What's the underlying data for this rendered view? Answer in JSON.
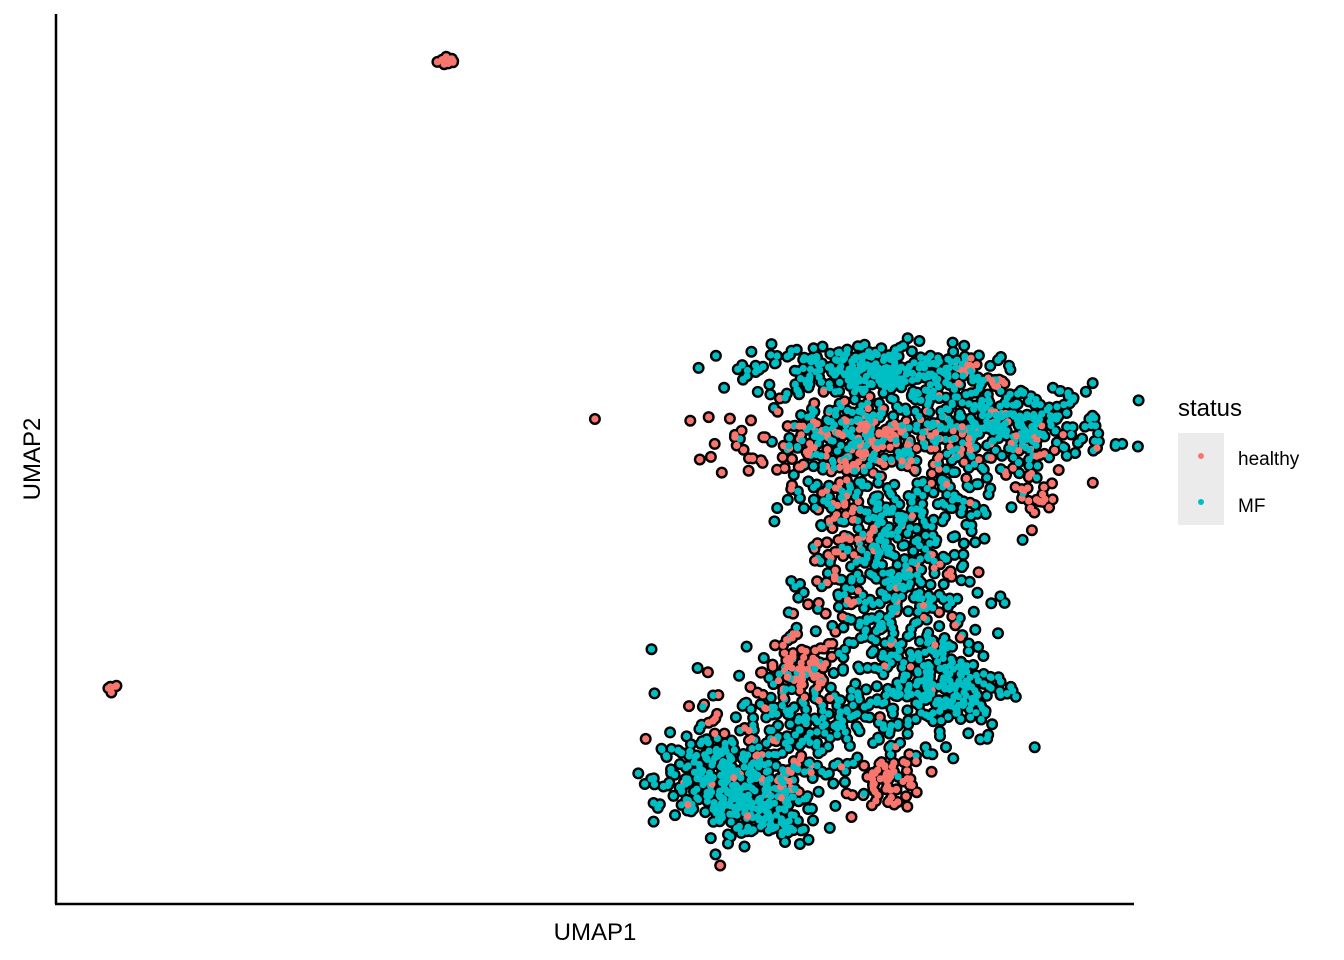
{
  "chart_data": {
    "type": "scatter",
    "title": "",
    "xlabel": "UMAP1",
    "ylabel": "UMAP2",
    "xlim": [
      0,
      100
    ],
    "ylim": [
      0,
      100
    ],
    "grid": false,
    "ticks": false,
    "legend": {
      "title": "status",
      "placement": "right",
      "entries": [
        {
          "label": "healthy",
          "color": "#F8766D"
        },
        {
          "label": "MF",
          "color": "#00BFC4"
        }
      ]
    },
    "series": [
      {
        "name": "healthy",
        "color": "#F8766D",
        "clusters": [
          {
            "cx": 36.3,
            "cy": 95.4,
            "sx": 0.5,
            "sy": 0.3,
            "n": 14
          },
          {
            "cx": 4.9,
            "cy": 24.1,
            "sx": 0.3,
            "sy": 0.2,
            "n": 6
          },
          {
            "cx": 76.1,
            "cy": 52.0,
            "sx": 7.5,
            "sy": 2.3,
            "n": 210
          },
          {
            "cx": 91.5,
            "cy": 48.0,
            "sx": 1.1,
            "sy": 2.8,
            "n": 30
          },
          {
            "cx": 84.6,
            "cy": 60.4,
            "sx": 0.6,
            "sy": 0.5,
            "n": 12
          },
          {
            "cx": 87.6,
            "cy": 58.8,
            "sx": 0.5,
            "sy": 0.4,
            "n": 10
          },
          {
            "cx": 73.1,
            "cy": 41.0,
            "sx": 1.6,
            "sy": 4.0,
            "n": 70
          },
          {
            "cx": 69.3,
            "cy": 26.0,
            "sx": 1.8,
            "sy": 2.0,
            "n": 70
          },
          {
            "cx": 77.6,
            "cy": 13.5,
            "sx": 1.6,
            "sy": 1.6,
            "n": 60
          },
          {
            "cx": 68.5,
            "cy": 14.0,
            "sx": 1.3,
            "sy": 1.0,
            "n": 20
          },
          {
            "cx": 64.0,
            "cy": 18.0,
            "sx": 4.0,
            "sy": 3.5,
            "n": 40
          },
          {
            "cx": 80.0,
            "cy": 35.0,
            "sx": 2.5,
            "sy": 5.0,
            "n": 30
          }
        ]
      },
      {
        "name": "MF",
        "color": "#00BFC4",
        "clusters": [
          {
            "cx": 75.7,
            "cy": 60.1,
            "sx": 5.5,
            "sy": 1.6,
            "n": 300
          },
          {
            "cx": 89.0,
            "cy": 54.0,
            "sx": 4.5,
            "sy": 2.3,
            "n": 240
          },
          {
            "cx": 75.5,
            "cy": 53.0,
            "sx": 5.0,
            "sy": 2.5,
            "n": 160
          },
          {
            "cx": 77.6,
            "cy": 36.0,
            "sx": 3.6,
            "sy": 5.5,
            "n": 300
          },
          {
            "cx": 82.6,
            "cy": 24.5,
            "sx": 3.0,
            "sy": 3.3,
            "n": 220
          },
          {
            "cx": 70.5,
            "cy": 20.5,
            "sx": 4.5,
            "sy": 3.8,
            "n": 200
          },
          {
            "cx": 61.9,
            "cy": 13.5,
            "sx": 3.2,
            "sy": 2.8,
            "n": 260
          },
          {
            "cx": 66.0,
            "cy": 9.5,
            "sx": 2.5,
            "sy": 1.6,
            "n": 90
          },
          {
            "cx": 78.0,
            "cy": 46.0,
            "sx": 5.0,
            "sy": 3.0,
            "n": 120
          }
        ]
      }
    ]
  }
}
